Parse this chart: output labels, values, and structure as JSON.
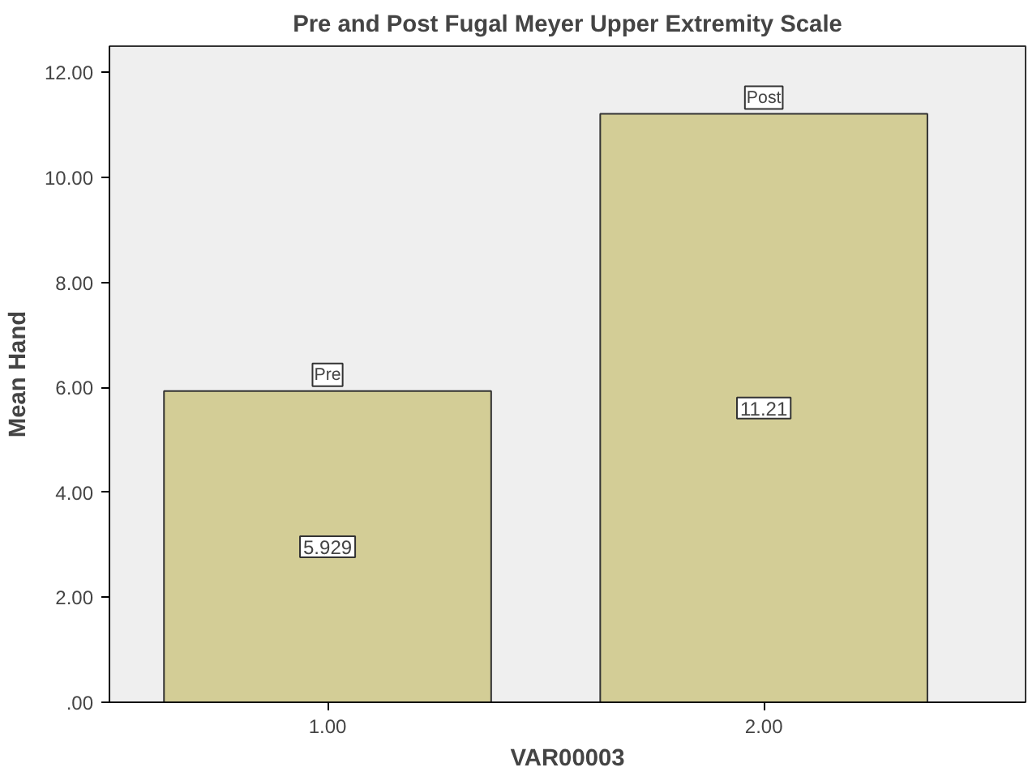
{
  "chart_data": {
    "type": "bar",
    "title": "Pre and Post Fugal Meyer Upper Extremity Scale",
    "xlabel": "VAR00003",
    "ylabel": "Mean Hand",
    "categories": [
      "1.00",
      "2.00"
    ],
    "values": [
      5.929,
      11.21
    ],
    "value_labels": [
      "5.929",
      "11.21"
    ],
    "color": "#d3cd96",
    "ylim": [
      0,
      12.5
    ],
    "yticks": [
      {
        "value": 0,
        "label": ".00"
      },
      {
        "value": 2,
        "label": "2.00"
      },
      {
        "value": 4,
        "label": "4.00"
      },
      {
        "value": 6,
        "label": "6.00"
      },
      {
        "value": 8,
        "label": "8.00"
      },
      {
        "value": 10,
        "label": "10.00"
      },
      {
        "value": 12,
        "label": "12.00"
      }
    ],
    "annotations": [
      {
        "text": "Pre",
        "x": "1.00",
        "y": 5.929
      },
      {
        "text": "Post",
        "x": "2.00",
        "y": 11.21
      }
    ],
    "grid": false
  }
}
